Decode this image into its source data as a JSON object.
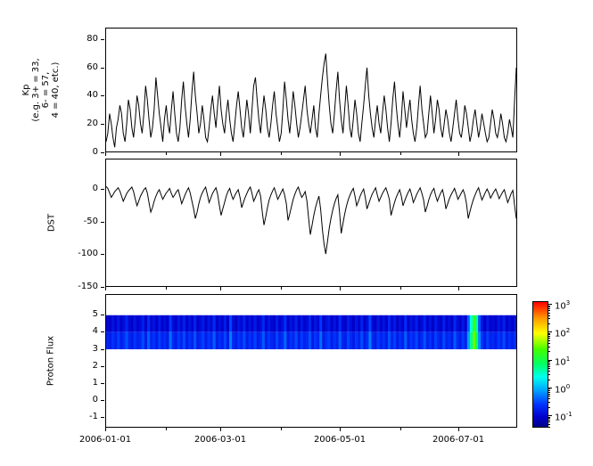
{
  "figure": {
    "background": "#ffffff",
    "line_color": "#000000"
  },
  "x_axis": {
    "span_days": 211,
    "tick_labels": [
      "2006-01-01",
      "2006-03-01",
      "2006-05-01",
      "2006-07-01"
    ],
    "tick_days": [
      0,
      59,
      120,
      181
    ],
    "minor_days": [
      31,
      90,
      151
    ]
  },
  "chart_data": [
    {
      "type": "line",
      "name": "kp-index",
      "ylabel": "Kp (e.g. 3+ = 33, 6- = 57, 4 = 40, etc.)",
      "ylabel_lines": [
        "Kp",
        "(e.g. 3+ = 33,",
        "6- = 57,",
        "4 = 40, etc.)"
      ],
      "ylim": [
        0,
        88
      ],
      "yticks": [
        0,
        20,
        40,
        60,
        80
      ],
      "x_start": "2006-01-01",
      "x_end": "2006-07-31",
      "values": [
        7,
        13,
        27,
        20,
        10,
        3,
        17,
        23,
        33,
        27,
        13,
        7,
        20,
        37,
        30,
        17,
        10,
        23,
        40,
        33,
        20,
        13,
        27,
        47,
        37,
        23,
        10,
        17,
        30,
        53,
        40,
        27,
        17,
        7,
        23,
        33,
        20,
        13,
        30,
        43,
        27,
        13,
        7,
        17,
        37,
        50,
        33,
        20,
        10,
        23,
        43,
        57,
        40,
        27,
        13,
        20,
        33,
        23,
        10,
        7,
        17,
        30,
        40,
        27,
        17,
        33,
        47,
        30,
        20,
        13,
        27,
        37,
        23,
        13,
        7,
        20,
        33,
        43,
        30,
        17,
        10,
        23,
        37,
        27,
        13,
        30,
        47,
        53,
        37,
        23,
        13,
        27,
        40,
        30,
        17,
        10,
        20,
        33,
        43,
        27,
        17,
        7,
        13,
        30,
        50,
        37,
        23,
        13,
        27,
        43,
        33,
        20,
        10,
        17,
        27,
        37,
        47,
        30,
        20,
        13,
        23,
        33,
        17,
        10,
        27,
        40,
        53,
        63,
        70,
        50,
        33,
        20,
        13,
        27,
        43,
        57,
        37,
        23,
        13,
        30,
        47,
        33,
        17,
        10,
        23,
        37,
        27,
        13,
        7,
        20,
        33,
        47,
        60,
        40,
        27,
        17,
        10,
        23,
        33,
        20,
        13,
        27,
        40,
        30,
        17,
        7,
        20,
        37,
        50,
        33,
        20,
        10,
        23,
        43,
        30,
        17,
        27,
        37,
        23,
        13,
        7,
        17,
        33,
        47,
        30,
        20,
        10,
        13,
        27,
        40,
        27,
        13,
        23,
        37,
        30,
        17,
        10,
        20,
        30,
        23,
        13,
        7,
        17,
        27,
        37,
        23,
        13,
        10,
        20,
        33,
        27,
        17,
        7,
        13,
        23,
        30,
        20,
        10,
        17,
        27,
        20,
        13,
        7,
        10,
        20,
        30,
        23,
        13,
        10,
        17,
        27,
        20,
        10,
        7,
        13,
        23,
        17,
        10,
        37,
        60
      ]
    },
    {
      "type": "line",
      "name": "dst-index",
      "ylabel": "DST",
      "ylabel_lines": [
        "DST"
      ],
      "ylim": [
        -150,
        47
      ],
      "yticks": [
        0,
        -50,
        -100,
        -150
      ],
      "x_start": "2006-01-01",
      "x_end": "2006-07-31",
      "values": [
        5,
        2,
        -5,
        -12,
        -8,
        -3,
        0,
        3,
        -2,
        -10,
        -18,
        -12,
        -6,
        -2,
        1,
        4,
        -3,
        -15,
        -25,
        -18,
        -10,
        -5,
        0,
        3,
        -5,
        -20,
        -35,
        -28,
        -18,
        -10,
        -4,
        0,
        -8,
        -15,
        -10,
        -5,
        -2,
        2,
        -6,
        -12,
        -8,
        -3,
        0,
        -10,
        -22,
        -15,
        -8,
        -2,
        3,
        -5,
        -18,
        -30,
        -45,
        -35,
        -22,
        -12,
        -5,
        0,
        4,
        -8,
        -20,
        -13,
        -6,
        -1,
        3,
        -7,
        -25,
        -40,
        -30,
        -20,
        -10,
        -3,
        2,
        -8,
        -15,
        -9,
        -4,
        0,
        -12,
        -28,
        -20,
        -12,
        -6,
        0,
        4,
        -6,
        -18,
        -12,
        -5,
        0,
        -10,
        -35,
        -55,
        -42,
        -28,
        -16,
        -8,
        -2,
        3,
        -6,
        -15,
        -10,
        -4,
        1,
        -8,
        -22,
        -48,
        -38,
        -26,
        -15,
        -7,
        0,
        4,
        -5,
        -12,
        -8,
        -3,
        -18,
        -45,
        -70,
        -55,
        -40,
        -28,
        -18,
        -10,
        -30,
        -62,
        -85,
        -100,
        -80,
        -60,
        -45,
        -32,
        -22,
        -14,
        -8,
        -35,
        -68,
        -52,
        -38,
        -26,
        -16,
        -9,
        -3,
        2,
        -10,
        -25,
        -18,
        -10,
        -4,
        1,
        -12,
        -30,
        -22,
        -14,
        -7,
        -2,
        3,
        -8,
        -18,
        -12,
        -6,
        -1,
        3,
        -5,
        -15,
        -40,
        -30,
        -20,
        -12,
        -6,
        0,
        -10,
        -25,
        -17,
        -10,
        -4,
        1,
        -8,
        -20,
        -14,
        -7,
        -2,
        3,
        -6,
        -16,
        -35,
        -26,
        -16,
        -8,
        -2,
        2,
        -9,
        -18,
        -11,
        -5,
        0,
        -12,
        -30,
        -22,
        -14,
        -8,
        -3,
        2,
        -6,
        -15,
        -10,
        -5,
        0,
        -8,
        -22,
        -45,
        -34,
        -24,
        -15,
        -8,
        -2,
        3,
        -7,
        -16,
        -10,
        -4,
        1,
        -5,
        -13,
        -8,
        -3,
        1,
        -6,
        -14,
        -9,
        -4,
        0,
        -10,
        -20,
        -13,
        -6,
        -1,
        -25,
        -45
      ]
    },
    {
      "type": "heatmap",
      "name": "proton-flux",
      "ylabel": "Proton Flux",
      "ylabel_lines": [
        "Proton Flux"
      ],
      "ylim": [
        -1.6,
        6.2
      ],
      "yticks": [
        5,
        4,
        3,
        2,
        1,
        0,
        -1
      ],
      "band_y": [
        3,
        5
      ],
      "x_start": "2006-01-01",
      "x_end": "2006-07-31",
      "values": [
        0.12,
        0.1,
        0.15,
        0.11,
        0.18,
        0.1,
        0.14,
        0.22,
        0.12,
        0.1,
        0.16,
        0.11,
        0.13,
        0.2,
        0.1,
        0.25,
        0.12,
        0.15,
        0.1,
        0.18,
        0.11,
        0.14,
        0.1,
        0.3,
        0.13,
        0.1,
        0.17,
        0.12,
        0.2,
        0.1,
        0.15,
        0.11,
        0.22,
        0.1,
        0.13,
        0.18,
        0.1,
        0.16,
        0.12,
        0.25,
        0.1,
        0.14,
        0.11,
        0.19,
        0.1,
        0.35,
        0.13,
        0.1,
        0.16,
        0.12,
        0.21,
        0.1,
        0.15,
        0.11,
        0.18,
        0.1,
        0.13,
        0.24,
        0.1,
        0.16,
        0.12,
        0.1,
        0.19,
        0.11,
        0.14,
        0.28,
        0.1,
        0.15,
        0.12,
        0.2,
        0.1,
        0.17,
        0.11,
        0.13,
        0.22,
        0.1,
        0.16,
        0.12,
        0.3,
        0.1,
        0.14,
        0.18,
        0.1,
        0.15,
        0.11,
        0.25,
        0.12,
        0.1,
        0.19,
        0.13,
        0.1,
        0.16,
        0.11,
        0.21,
        0.1,
        0.14,
        0.35,
        0.12,
        0.1,
        0.17,
        0.11,
        0.15,
        0.1,
        0.23,
        0.12,
        0.18,
        0.1,
        0.14,
        0.11,
        0.26,
        0.1,
        0.16,
        0.12,
        0.19,
        0.1,
        0.13,
        0.22,
        0.11,
        0.15,
        0.1,
        0.18,
        0.12,
        0.1,
        0.2,
        0.11,
        0.14,
        0.1,
        0.24,
        0.13,
        0.1,
        0.17,
        0.11,
        0.5,
        3.0,
        20.0,
        6.0,
        0.4,
        0.15,
        0.1,
        0.18,
        0.11,
        0.13,
        0.1,
        0.16,
        0.12,
        0.2,
        0.1,
        0.14,
        0.11,
        0.15
      ],
      "colorbar": {
        "scale": "log10",
        "base": "10",
        "tick_exponents": [
          3,
          2,
          1,
          0,
          -1
        ],
        "log_top": 3.1,
        "log_bottom": -1.44,
        "gradient_stops": [
          [
            "#ff0000",
            0
          ],
          [
            "#ff9900",
            13
          ],
          [
            "#ffff00",
            25
          ],
          [
            "#44ff00",
            38
          ],
          [
            "#00ff66",
            50
          ],
          [
            "#00ffee",
            60
          ],
          [
            "#00aaff",
            70
          ],
          [
            "#0033ff",
            82
          ],
          [
            "#0000cc",
            92
          ],
          [
            "#000088",
            100
          ]
        ]
      }
    }
  ]
}
